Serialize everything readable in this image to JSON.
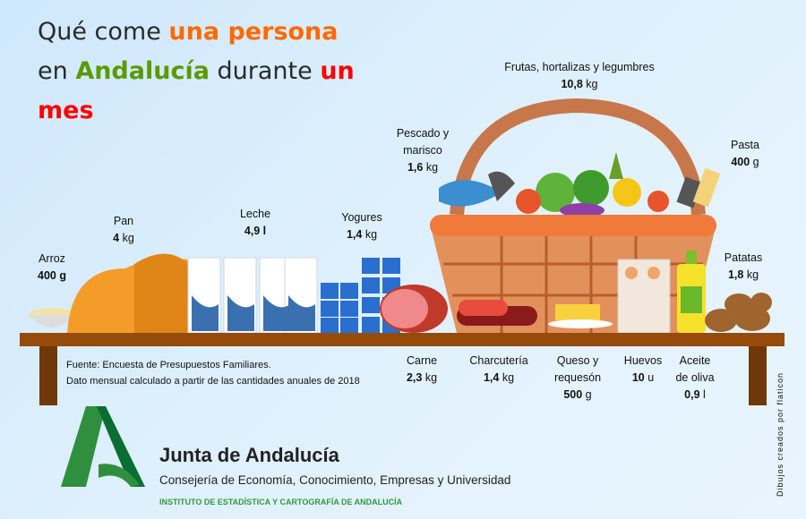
{
  "title": {
    "part1": "Qué come ",
    "part2": "una persona",
    "part3": "en ",
    "part4": "Andalucía",
    "part5": " durante ",
    "part6": "un",
    "part7": "mes"
  },
  "colors": {
    "orange": "#ff6a00",
    "green": "#5a9a00",
    "red": "#ff0000",
    "table": "#964b0a",
    "brand_green": "#2e9a3a"
  },
  "items": {
    "arroz": {
      "name": "Arroz",
      "value": "400 g"
    },
    "pan": {
      "name": "Pan",
      "value": "4",
      "unit": " kg"
    },
    "leche": {
      "name": "Leche",
      "value": "4,9 l"
    },
    "yogures": {
      "name": "Yogures",
      "value": "1,4",
      "unit": " kg"
    },
    "pescado": {
      "name1": "Pescado y",
      "name2": "marisco",
      "value": "1,6",
      "unit": " kg"
    },
    "frutas": {
      "name": "Frutas, hortalizas y legumbres",
      "value": "10,8",
      "unit": " kg"
    },
    "pasta": {
      "name": "Pasta",
      "value": "400",
      "unit": " g"
    },
    "patatas": {
      "name": "Patatas",
      "value": "1,8",
      "unit": " kg"
    },
    "carne": {
      "name": "Carne",
      "value": "2,3",
      "unit": " kg"
    },
    "charcuteria": {
      "name": "Charcutería",
      "value": "1,4",
      "unit": " kg"
    },
    "queso": {
      "name1": "Queso y",
      "name2": "requesón",
      "value": "500",
      "unit": " g"
    },
    "huevos": {
      "name": "Huevos",
      "value": "10",
      "unit": " u"
    },
    "aceite": {
      "name1": "Aceite",
      "name2": "de oliva",
      "value": "0,9",
      "unit": " l"
    }
  },
  "source": {
    "line1": "Fuente: Encuesta de Presupuestos Familiares.",
    "line2": "Dato mensual calculado a partir de las cantidades anuales de 2018"
  },
  "brand": {
    "name": "Junta de Andalucía",
    "dept": "Consejería de Economía, Conocimiento, Empresas y Universidad",
    "institute": "INSTITUTO DE ESTADÍSTICA Y CARTOGRAFÍA DE ANDALUCÍA"
  },
  "credit": "Dibujos creados por flaticon"
}
